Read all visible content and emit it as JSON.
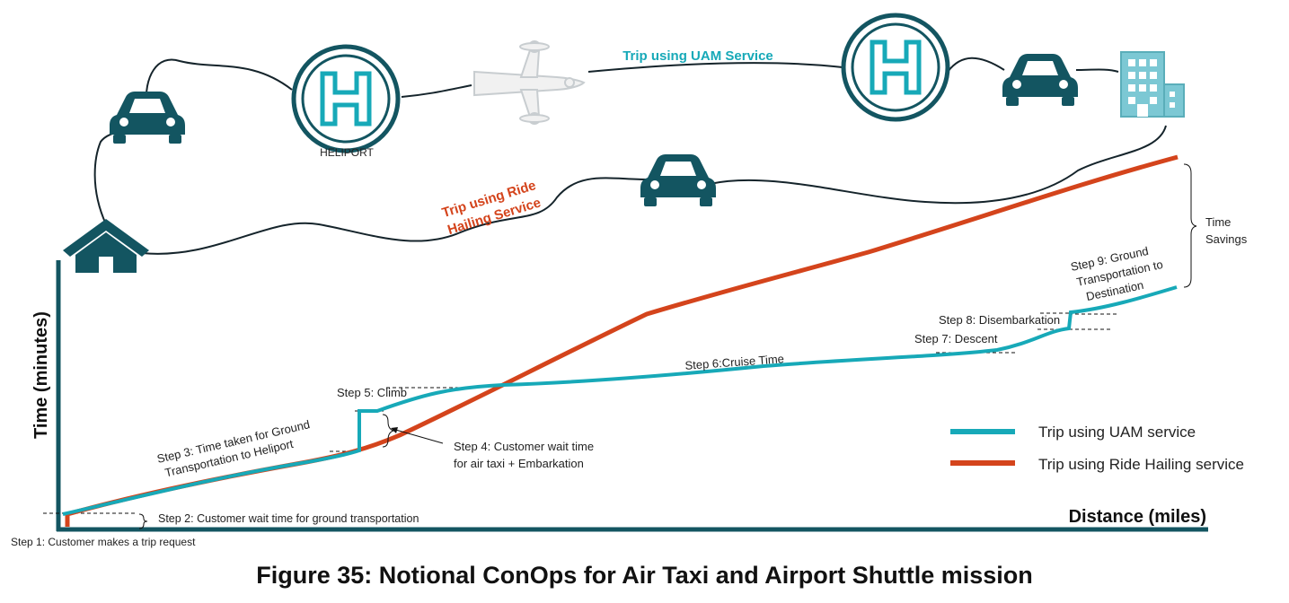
{
  "route": {
    "uam_trip_label": "Trip using UAM Service",
    "ride_trip_label_line1": "Trip using Ride",
    "ride_trip_label_line2": "Hailing Service",
    "heliport_label": "HELIPORT"
  },
  "icons": [
    "house-icon",
    "car-icon",
    "heliport-icon",
    "air-taxi-icon",
    "building-icon"
  ],
  "axes": {
    "ylabel": "Time (minutes)",
    "xlabel": "Distance (miles)"
  },
  "steps": {
    "s1": "Step 1: Customer makes a trip request",
    "s2": "Step 2: Customer wait time for ground transportation",
    "s3_line1": "Step 3: Time taken for Ground",
    "s3_line2": "Transportation to Heliport",
    "s4_line1": "Step 4: Customer wait time",
    "s4_line2": "for air taxi + Embarkation",
    "s5": "Step 5: Climb",
    "s6": "Step 6:Cruise Time",
    "s7": "Step 7: Descent",
    "s8": "Step 8: Disembarkation",
    "s9_line1": "Step 9: Ground",
    "s9_line2": "Transportation to",
    "s9_line3": "Destination"
  },
  "time_savings_line1": "Time",
  "time_savings_line2": "Savings",
  "legend": {
    "uam": "Trip using UAM service",
    "ride": "Trip using Ride Hailing service"
  },
  "colors": {
    "teal": "#17a9b8",
    "orange": "#d4441c",
    "dark_teal": "#135561"
  },
  "caption": "Figure 35: Notional ConOps for Air Taxi and Airport Shuttle mission"
}
